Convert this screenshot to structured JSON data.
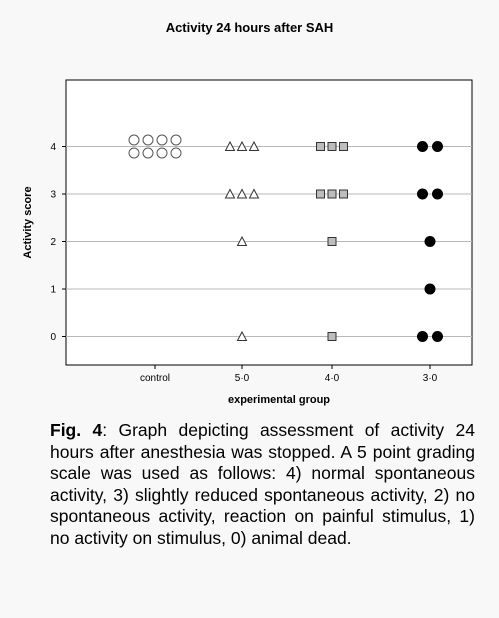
{
  "chart_data": {
    "type": "scatter",
    "title": "Activity 24 hours after SAH",
    "xlabel": "experimental group",
    "ylabel": "Activity score",
    "categories": [
      "control",
      "5·0",
      "4·0",
      "3·0"
    ],
    "y_ticks": [
      "0",
      "1",
      "2",
      "3",
      "4"
    ],
    "ylim": [
      -0.6,
      5.4
    ],
    "grid": true,
    "series": [
      {
        "category": "control",
        "marker": "circle-open",
        "points": [
          {
            "y": 4,
            "count": 8
          }
        ]
      },
      {
        "category": "5·0",
        "marker": "triangle-open",
        "points": [
          {
            "y": 4,
            "count": 3
          },
          {
            "y": 3,
            "count": 3
          },
          {
            "y": 2,
            "count": 1
          },
          {
            "y": 0,
            "count": 1
          }
        ]
      },
      {
        "category": "4·0",
        "marker": "square-gray",
        "points": [
          {
            "y": 4,
            "count": 3
          },
          {
            "y": 3,
            "count": 3
          },
          {
            "y": 2,
            "count": 1
          },
          {
            "y": 0,
            "count": 1
          }
        ]
      },
      {
        "category": "3·0",
        "marker": "circle-filled",
        "points": [
          {
            "y": 4,
            "count": 2
          },
          {
            "y": 3,
            "count": 2
          },
          {
            "y": 2,
            "count": 1
          },
          {
            "y": 1,
            "count": 1
          },
          {
            "y": 0,
            "count": 2
          }
        ]
      }
    ],
    "colors": {
      "grid": "#b8b8b8",
      "square_fill": "#bdbdbd",
      "filled": "#000000",
      "plot_bg": "#ffffff"
    }
  },
  "caption": {
    "label": "Fig. 4",
    "text": ": Graph depicting assessment of activity 24 hours after anesthesia was stopped. A 5 point grading scale was used as follows: 4) normal spontaneous activity, 3) slightly reduced spontaneous activity, 2) no spontaneous activity, reaction on painful stimulus, 1) no activity on stimulus, 0) animal dead."
  }
}
